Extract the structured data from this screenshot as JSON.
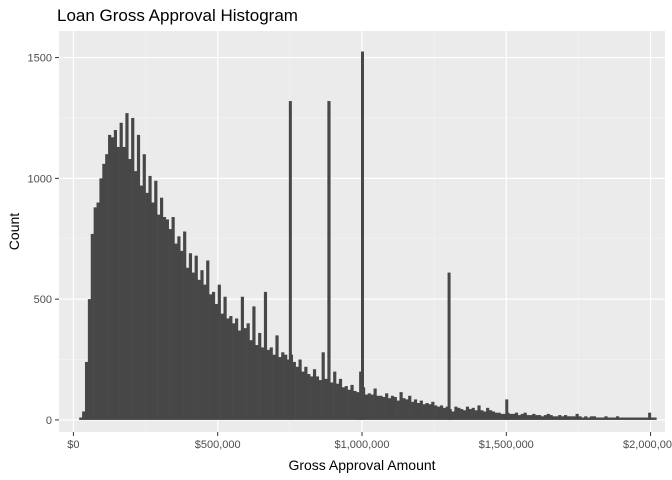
{
  "chart_data": {
    "type": "bar",
    "title": "Loan Gross Approval Histogram",
    "xlabel": "Gross Approval Amount",
    "ylabel": "Count",
    "xlim": [
      -50000,
      2050000
    ],
    "ylim": [
      -50,
      1610
    ],
    "x_ticks": [
      0,
      500000,
      1000000,
      1500000,
      2000000
    ],
    "x_tick_labels": [
      "$0",
      "$500,000",
      "$1,000,000",
      "$1,500,000",
      "$2,000,000"
    ],
    "y_ticks": [
      0,
      500,
      1000,
      1500
    ],
    "y_tick_labels": [
      "0",
      "500",
      "1000",
      "1500"
    ],
    "grid": true,
    "bin_width": 10000,
    "bin_start": 20000,
    "values": [
      10,
      35,
      240,
      500,
      770,
      880,
      900,
      1000,
      1060,
      1100,
      1180,
      1170,
      1200,
      1130,
      1230,
      1130,
      1270,
      1080,
      1250,
      1030,
      1180,
      970,
      1100,
      940,
      1010,
      900,
      990,
      850,
      920,
      840,
      830,
      790,
      840,
      730,
      760,
      700,
      780,
      630,
      690,
      610,
      680,
      580,
      620,
      560,
      660,
      520,
      530,
      480,
      560,
      440,
      510,
      420,
      430,
      400,
      420,
      370,
      510,
      380,
      400,
      330,
      470,
      310,
      360,
      300,
      530,
      290,
      300,
      270,
      350,
      260,
      280,
      270,
      250,
      270,
      240,
      220,
      250,
      200,
      220,
      190,
      180,
      210,
      180,
      165,
      280,
      170,
      1320,
      155,
      200,
      150,
      170,
      135,
      140,
      125,
      145,
      120,
      115,
      110,
      135,
      105,
      110,
      105,
      130,
      100,
      100,
      95,
      110,
      90,
      100,
      95,
      80,
      115,
      90,
      85,
      100,
      75,
      85,
      70,
      80,
      65,
      70,
      65,
      75,
      60,
      55,
      60,
      50,
      55,
      45,
      35,
      55,
      50,
      45,
      40,
      55,
      45,
      50,
      40,
      60,
      40,
      35,
      50,
      40,
      35,
      30,
      30,
      25,
      25,
      30,
      25,
      25,
      30,
      20,
      25,
      30,
      20,
      20,
      25,
      20,
      20,
      15,
      20,
      25,
      20,
      15,
      15,
      20,
      15,
      20,
      15,
      15,
      15,
      25,
      15,
      10,
      15,
      10,
      15,
      15,
      10,
      10,
      10,
      15,
      10,
      10,
      10,
      15,
      10,
      10,
      10,
      10,
      10,
      10,
      10,
      10,
      10,
      10,
      10,
      10,
      10
    ],
    "spikes": [
      {
        "x": 750000,
        "value": 1320
      },
      {
        "x": 1000000,
        "value": 1525
      },
      {
        "x": 1300000,
        "value": 610
      },
      {
        "x": 1500000,
        "value": 85
      },
      {
        "x": 1995000,
        "value": 30
      }
    ],
    "extra_bins": [
      {
        "x": 990000,
        "value": 200
      },
      {
        "x": 980000,
        "value": 100
      }
    ]
  }
}
